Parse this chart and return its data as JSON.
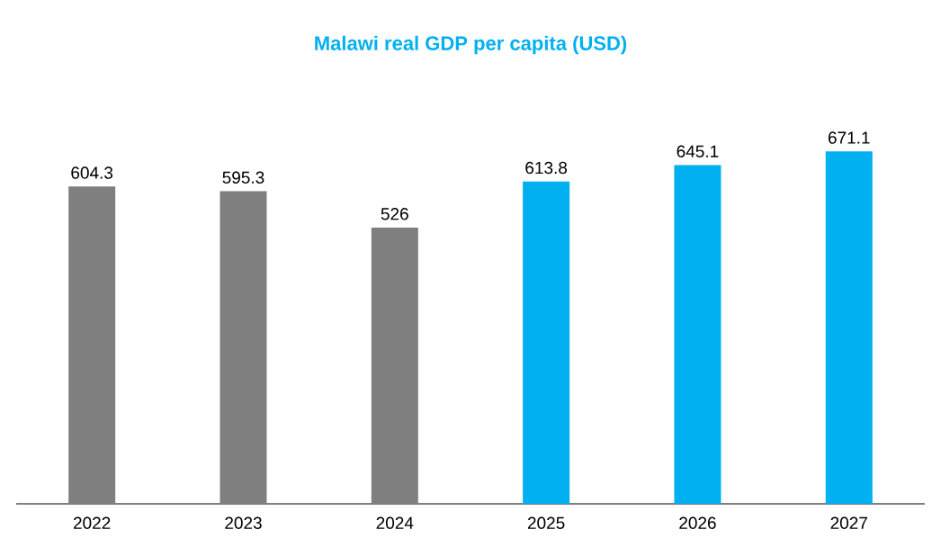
{
  "chart_data": {
    "type": "bar",
    "title": "Malawi real GDP per capita (USD)",
    "categories": [
      "2022",
      "2023",
      "2024",
      "2025",
      "2026",
      "2027"
    ],
    "values": [
      604.3,
      595.3,
      526,
      613.8,
      645.1,
      671.1
    ],
    "value_labels": [
      "604.3",
      "595.3",
      "526",
      "613.8",
      "645.1",
      "671.1"
    ],
    "colors": [
      "#7f7f7f",
      "#7f7f7f",
      "#7f7f7f",
      "#00b0f0",
      "#00b0f0",
      "#00b0f0"
    ]
  }
}
